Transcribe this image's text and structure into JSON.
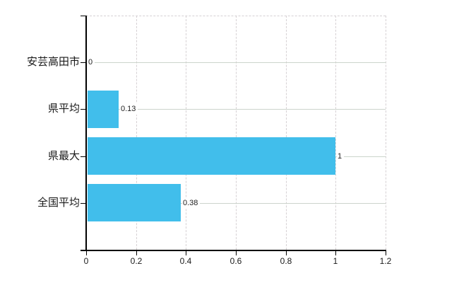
{
  "chart_data": {
    "type": "bar",
    "orientation": "horizontal",
    "title": "",
    "categories": [
      "安芸高田市",
      "県平均",
      "県最大",
      "全国平均"
    ],
    "values": [
      0,
      0.13,
      1,
      0.38
    ],
    "value_labels": [
      "0",
      "0.13",
      "1",
      "0.38"
    ],
    "x_tick_values": [
      0,
      0.2,
      0.4,
      0.6,
      0.8,
      1,
      1.2
    ],
    "x_tick_labels": [
      "0",
      "0.2",
      "0.4",
      "0.6",
      "0.8",
      "1",
      "1.2"
    ],
    "xlim": [
      0,
      1.2
    ],
    "grid": true,
    "legend": false,
    "colors": {
      "bar": "#41BEEB",
      "axis": "#000000",
      "vertical_gridline": "#d6d1d4",
      "horizontal_gridline": "#ccd4cc",
      "text": "#1a1a1a"
    }
  }
}
